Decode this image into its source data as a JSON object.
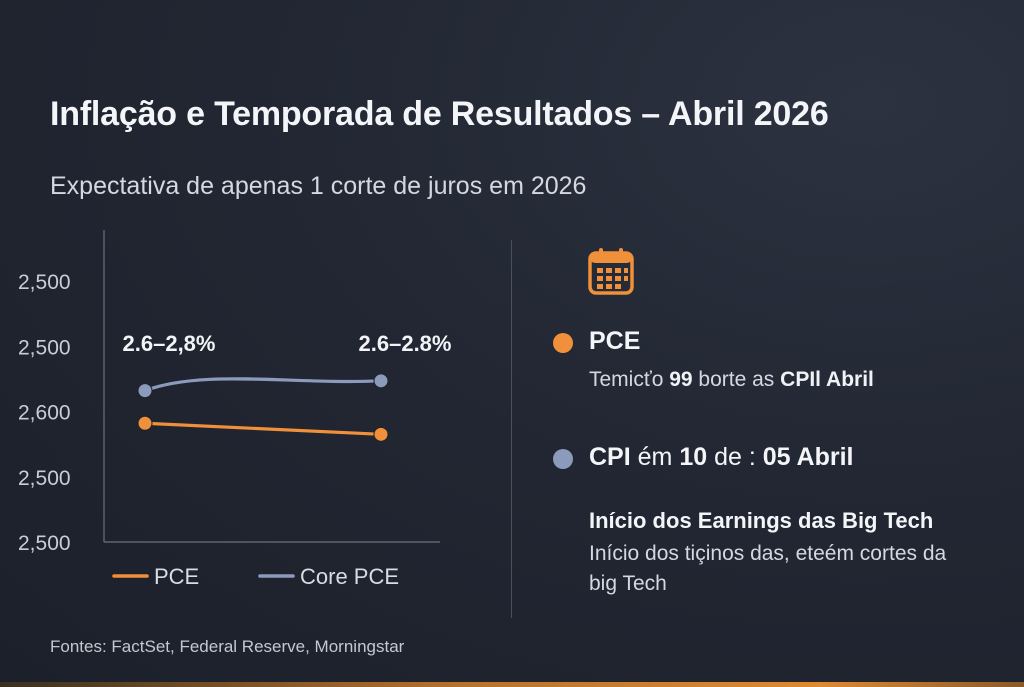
{
  "header": {
    "title": "Inflação e Temporada de Resultados – Abril 2026",
    "subtitle": "Expectativa de apenas 1 corte de juros em 2026"
  },
  "colors": {
    "accent_orange": "#f0903a",
    "series_blue": "#8c9bbb",
    "axis": "#6a7080"
  },
  "chart_data": {
    "type": "line",
    "title": "",
    "xlabel": "",
    "ylabel": "",
    "ytick_labels": [
      "2,500",
      "2,500",
      "2,600",
      "2,500",
      "2,500"
    ],
    "y_domain": [
      0,
      4
    ],
    "x": [
      0,
      1
    ],
    "series": [
      {
        "name": "PCE",
        "color": "#f0903a",
        "values": [
          1.82,
          1.65
        ]
      },
      {
        "name": "Core PCE",
        "color": "#8c9bbb",
        "values": [
          2.32,
          2.47
        ]
      }
    ],
    "annotations": [
      {
        "text": "2.6–2,8%",
        "x": 0,
        "y": 3.05
      },
      {
        "text": "2.6–2.8%",
        "x": 1,
        "y": 3.05
      }
    ],
    "legend": {
      "placement": "bottom"
    },
    "grid": false
  },
  "panel": {
    "icon": "calendar-icon",
    "pce": {
      "title": "PCE",
      "desc_prefix": "Temicťo ",
      "desc_num": "99",
      "desc_mid": " borte as ",
      "desc_strong": "CPIl Abril"
    },
    "cpi": {
      "title_a": "CPI",
      "title_b": " ém ",
      "title_c": "10",
      "title_d": " de : ",
      "title_e": "05 Abril"
    },
    "earnings": {
      "title": "Início dos Earnings das Big Tech",
      "desc": "Início dos tiçinos das, eteém cortes da big Tech"
    }
  },
  "footer": {
    "sources": "Fontes: FactSet, Federal Reserve, Morningstar"
  }
}
